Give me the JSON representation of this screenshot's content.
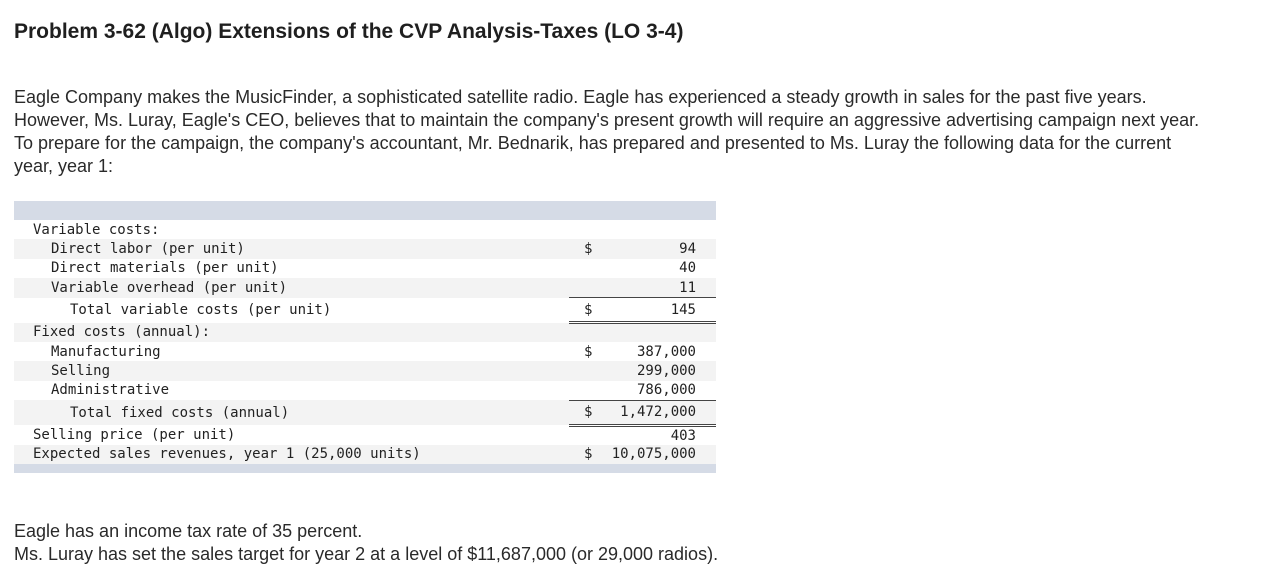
{
  "problem": {
    "title": "Problem 3-62 (Algo) Extensions of the CVP Analysis-Taxes (LO 3-4)",
    "intro": "Eagle Company makes the MusicFinder, a sophisticated satellite radio. Eagle has experienced a steady growth in sales for the past five years. However, Ms. Luray, Eagle's CEO, believes that to maintain the company's present growth will require an aggressive advertising campaign next year. To prepare for the campaign, the company's accountant, Mr. Bednarik, has prepared and presented to Ms. Luray the following data for the current year, year 1:"
  },
  "table": {
    "variable_costs_header": "Variable costs:",
    "direct_labor": {
      "label": "Direct labor (per unit)",
      "currency": "$",
      "value": "94"
    },
    "direct_materials": {
      "label": "Direct materials (per unit)",
      "value": "40"
    },
    "variable_overhead": {
      "label": "Variable overhead (per unit)",
      "value": "11"
    },
    "total_variable": {
      "label": "Total variable costs (per unit)",
      "currency": "$",
      "value": "145"
    },
    "fixed_costs_header": "Fixed costs (annual):",
    "manufacturing": {
      "label": "Manufacturing",
      "currency": "$",
      "value": "387,000"
    },
    "selling": {
      "label": "Selling",
      "value": "299,000"
    },
    "administrative": {
      "label": "Administrative",
      "value": "786,000"
    },
    "total_fixed": {
      "label": "Total fixed costs (annual)",
      "currency": "$",
      "value": "1,472,000"
    },
    "selling_price": {
      "label": "Selling price (per unit)",
      "value": "403"
    },
    "expected_sales": {
      "label": "Expected sales revenues, year 1 (25,000 units)",
      "currency": "$",
      "value": "10,075,000"
    }
  },
  "notes": {
    "tax_rate": "Eagle has an income tax rate of 35 percent.",
    "sales_target": "Ms. Luray has set the sales target for year 2 at a level of $11,687,000 (or 29,000 radios)."
  }
}
